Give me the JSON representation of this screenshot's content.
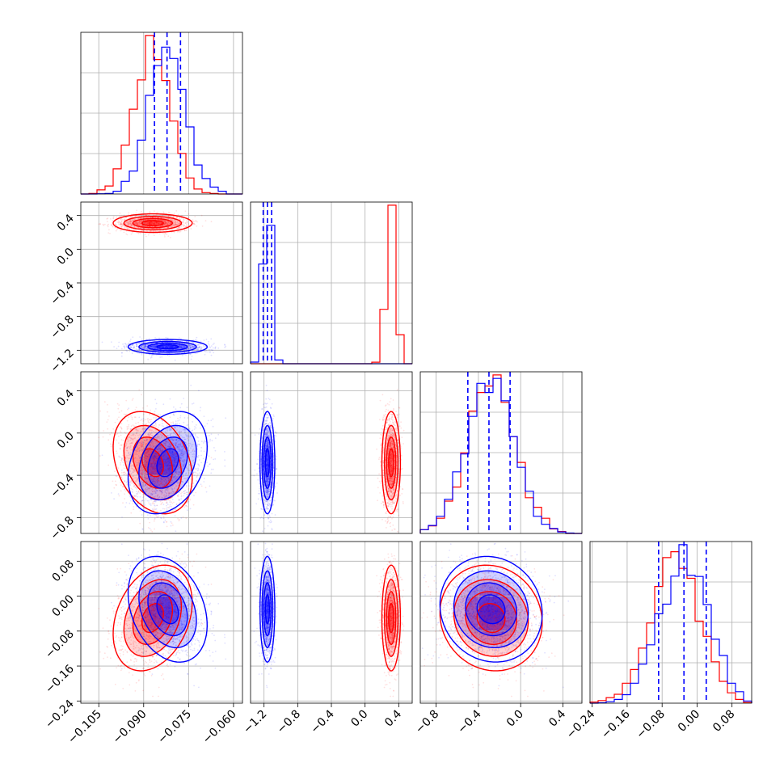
{
  "chart_data": {
    "type": "scatter",
    "kind": "corner-plot",
    "grid": true,
    "series": [
      {
        "color": "#ff0000",
        "mean": [
          -0.087,
          0.31,
          -0.28,
          -0.05
        ],
        "std": [
          0.006,
          0.05,
          0.22,
          0.055
        ],
        "corr_01": 0.0,
        "corr_02": -0.3,
        "corr_03": 0.3
      },
      {
        "color": "#0000ff",
        "mean": [
          -0.082,
          -1.16,
          -0.28,
          -0.03
        ],
        "std": [
          0.006,
          0.04,
          0.22,
          0.055
        ],
        "corr_01": 0.0,
        "corr_02": 0.3,
        "corr_03": -0.3
      }
    ],
    "quantile_lines": {
      "color": "#0000ff",
      "param0": [
        -0.0864,
        -0.0822,
        -0.0777
      ],
      "param1": [
        -1.21,
        -1.16,
        -1.11
      ],
      "param2": [
        -0.5,
        -0.3,
        -0.1
      ],
      "param3": [
        -0.088,
        -0.03,
        0.021
      ]
    },
    "ranges": [
      [
        -0.111,
        -0.057
      ],
      [
        -1.36,
        0.56
      ],
      [
        -0.95,
        0.58
      ],
      [
        -0.245,
        0.125
      ]
    ],
    "ticks": [
      {
        "values": [
          -0.105,
          -0.09,
          -0.075,
          -0.06
        ],
        "labels": [
          "−0.105",
          "−0.090",
          "−0.075",
          "−0.060"
        ]
      },
      {
        "values": [
          -1.2,
          -0.8,
          -0.4,
          0.0,
          0.4
        ],
        "labels": [
          "−1.2",
          "−0.8",
          "−0.4",
          "0.0",
          "0.4"
        ]
      },
      {
        "values": [
          -0.8,
          -0.4,
          0.0,
          0.4
        ],
        "labels": [
          "−0.8",
          "−0.4",
          "0.0",
          "0.4"
        ]
      },
      {
        "values": [
          -0.24,
          -0.16,
          -0.08,
          0.0,
          0.08
        ],
        "labels": [
          "−0.24",
          "−0.16",
          "−0.08",
          "0.00",
          "0.08"
        ]
      }
    ],
    "hist_bins": 20,
    "samples_per_series": 3000
  }
}
